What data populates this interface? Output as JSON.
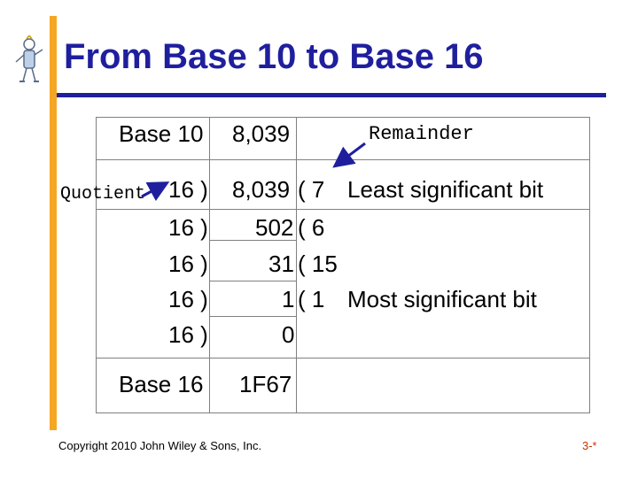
{
  "slide": {
    "title": "From Base 10 to Base 16",
    "header": {
      "base10_label": "Base 10",
      "base10_value": "8,039",
      "remainder_label": "Remainder"
    },
    "quotient_label": "Quotient",
    "rows": [
      {
        "divisor": "16 )",
        "dividend": "8,039",
        "remainder": "( 7",
        "note": "Least significant bit"
      },
      {
        "divisor": "16 )",
        "dividend": "502",
        "remainder": "( 6",
        "note": ""
      },
      {
        "divisor": "16 )",
        "dividend": "31",
        "remainder": "( 15",
        "note": ""
      },
      {
        "divisor": "16 )",
        "dividend": "1",
        "remainder": "( 1",
        "note": "Most significant bit"
      },
      {
        "divisor": "16 )",
        "dividend": "0",
        "remainder": "",
        "note": ""
      }
    ],
    "result": {
      "label": "Base 16",
      "value": "1F67"
    },
    "footer": {
      "copyright": "Copyright 2010 John Wiley & Sons, Inc.",
      "page_number": "3-*"
    },
    "colors": {
      "title": "#1f1f9e",
      "accent_bar": "#f5a623",
      "rule": "#1f1f9e",
      "arrow": "#1f1f9e",
      "page_number": "#cc3300"
    }
  }
}
